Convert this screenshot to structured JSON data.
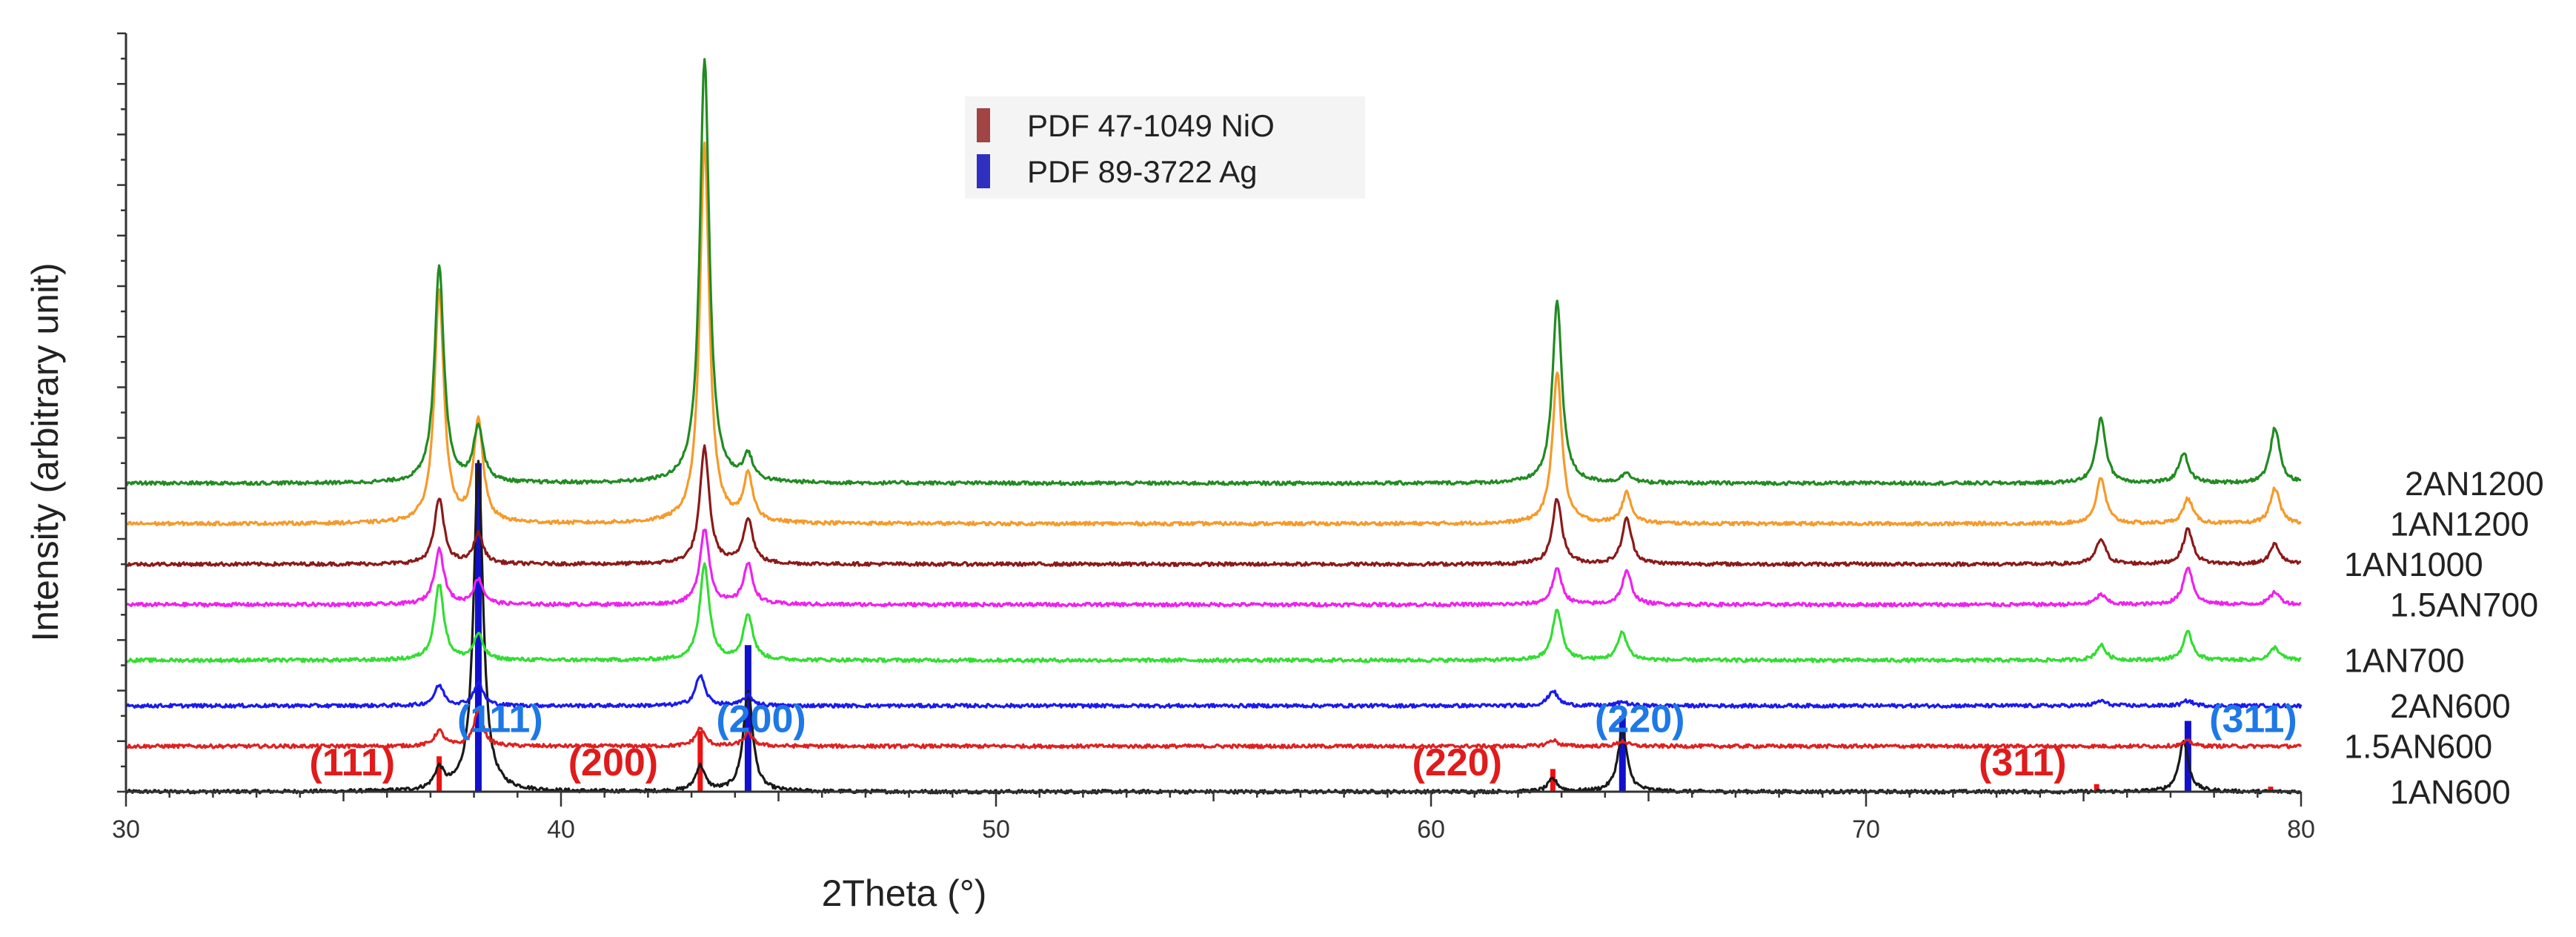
{
  "chart_data": {
    "type": "line",
    "title": "",
    "xlabel": "2Theta (°)",
    "ylabel": "Intensity (arbitrary unit)",
    "xlim": [
      30,
      80
    ],
    "x_ticks": [
      30,
      40,
      50,
      60,
      70,
      80
    ],
    "legend": {
      "placement": "top-center",
      "entries": [
        {
          "label": "PDF 47-1049 NiO",
          "color": "#a04444"
        },
        {
          "label": "PDF 89-3722 Ag",
          "color": "#3030c0"
        }
      ]
    },
    "series": [
      {
        "name": "1AN600",
        "color": "#1a1a1a",
        "baseline": 0,
        "peaks": [
          {
            "x": 37.2,
            "y": 0.4
          },
          {
            "x": 38.1,
            "y": 6.5
          },
          {
            "x": 43.2,
            "y": 0.5
          },
          {
            "x": 44.3,
            "y": 2.0
          },
          {
            "x": 62.8,
            "y": 0.25
          },
          {
            "x": 64.4,
            "y": 1.2
          },
          {
            "x": 77.3,
            "y": 1.0
          }
        ]
      },
      {
        "name": "1.5AN600",
        "color": "#e02020",
        "baseline": 0.9,
        "peaks": [
          {
            "x": 37.2,
            "y": 0.3
          },
          {
            "x": 38.1,
            "y": 0.7
          },
          {
            "x": 43.2,
            "y": 0.35
          },
          {
            "x": 44.3,
            "y": 0.25
          },
          {
            "x": 62.8,
            "y": 0.12
          },
          {
            "x": 64.4,
            "y": 0.1
          },
          {
            "x": 77.4,
            "y": 0.1
          }
        ]
      },
      {
        "name": "2AN600",
        "color": "#1a1aee",
        "baseline": 1.7,
        "peaks": [
          {
            "x": 37.2,
            "y": 0.4
          },
          {
            "x": 38.1,
            "y": 0.45
          },
          {
            "x": 43.2,
            "y": 0.6
          },
          {
            "x": 44.3,
            "y": 0.2
          },
          {
            "x": 62.8,
            "y": 0.3
          },
          {
            "x": 64.4,
            "y": 0.08
          },
          {
            "x": 75.4,
            "y": 0.1
          },
          {
            "x": 77.4,
            "y": 0.1
          }
        ]
      },
      {
        "name": "1AN700",
        "color": "#33dd33",
        "baseline": 2.6,
        "peaks": [
          {
            "x": 37.2,
            "y": 1.5
          },
          {
            "x": 38.1,
            "y": 0.5
          },
          {
            "x": 43.3,
            "y": 1.9
          },
          {
            "x": 44.3,
            "y": 0.9
          },
          {
            "x": 62.9,
            "y": 1.0
          },
          {
            "x": 64.4,
            "y": 0.55
          },
          {
            "x": 75.4,
            "y": 0.3
          },
          {
            "x": 77.4,
            "y": 0.55
          },
          {
            "x": 79.4,
            "y": 0.25
          }
        ]
      },
      {
        "name": "1.5AN700",
        "color": "#ee22ee",
        "baseline": 3.7,
        "peaks": [
          {
            "x": 37.2,
            "y": 1.1
          },
          {
            "x": 38.1,
            "y": 0.5
          },
          {
            "x": 43.3,
            "y": 1.5
          },
          {
            "x": 44.3,
            "y": 0.8
          },
          {
            "x": 62.9,
            "y": 0.7
          },
          {
            "x": 64.5,
            "y": 0.65
          },
          {
            "x": 75.4,
            "y": 0.2
          },
          {
            "x": 77.4,
            "y": 0.75
          },
          {
            "x": 79.4,
            "y": 0.25
          }
        ]
      },
      {
        "name": "1AN1000",
        "color": "#8b1a1a",
        "baseline": 4.5,
        "peaks": [
          {
            "x": 37.2,
            "y": 1.3
          },
          {
            "x": 38.1,
            "y": 0.6
          },
          {
            "x": 43.3,
            "y": 2.3
          },
          {
            "x": 44.3,
            "y": 0.9
          },
          {
            "x": 62.9,
            "y": 1.3
          },
          {
            "x": 64.5,
            "y": 0.9
          },
          {
            "x": 75.4,
            "y": 0.5
          },
          {
            "x": 77.4,
            "y": 0.7
          },
          {
            "x": 79.4,
            "y": 0.4
          }
        ]
      },
      {
        "name": "1AN1200",
        "color": "#f59a2a",
        "baseline": 5.3,
        "peaks": [
          {
            "x": 37.2,
            "y": 4.6
          },
          {
            "x": 38.1,
            "y": 2.0
          },
          {
            "x": 43.3,
            "y": 7.5
          },
          {
            "x": 44.3,
            "y": 0.9
          },
          {
            "x": 62.9,
            "y": 3.0
          },
          {
            "x": 64.5,
            "y": 0.6
          },
          {
            "x": 75.4,
            "y": 0.9
          },
          {
            "x": 77.4,
            "y": 0.5
          },
          {
            "x": 79.4,
            "y": 0.7
          }
        ]
      },
      {
        "name": "2AN1200",
        "color": "#228b22",
        "baseline": 6.1,
        "peaks": [
          {
            "x": 37.2,
            "y": 4.3
          },
          {
            "x": 38.1,
            "y": 1.1
          },
          {
            "x": 43.3,
            "y": 8.4
          },
          {
            "x": 44.3,
            "y": 0.5
          },
          {
            "x": 62.9,
            "y": 3.6
          },
          {
            "x": 64.5,
            "y": 0.2
          },
          {
            "x": 75.4,
            "y": 1.3
          },
          {
            "x": 77.3,
            "y": 0.6
          },
          {
            "x": 79.4,
            "y": 1.1
          }
        ]
      }
    ],
    "reference_lines": [
      {
        "pattern": "PDF 47-1049 NiO",
        "color": "#ee1111",
        "lines": [
          {
            "x": 37.2,
            "h": 0.7
          },
          {
            "x": 43.2,
            "h": 1.2
          },
          {
            "x": 62.8,
            "h": 0.45
          },
          {
            "x": 75.3,
            "h": 0.15
          },
          {
            "x": 79.3,
            "h": 0.1
          }
        ]
      },
      {
        "pattern": "PDF 89-3722 Ag",
        "color": "#1111cc",
        "lines": [
          {
            "x": 38.1,
            "h": 6.5
          },
          {
            "x": 44.3,
            "h": 2.9
          },
          {
            "x": 64.4,
            "h": 1.5
          },
          {
            "x": 77.4,
            "h": 1.4
          }
        ]
      }
    ],
    "annotations": [
      {
        "text": "(111)",
        "x": 38.6,
        "color": "#1e78e6",
        "group": "Ag"
      },
      {
        "text": "(200)",
        "x": 44.6,
        "color": "#1e78e6",
        "group": "Ag"
      },
      {
        "text": "(220)",
        "x": 64.8,
        "color": "#1e78e6",
        "group": "Ag"
      },
      {
        "text": "(311)",
        "x": 78.9,
        "color": "#1e78e6",
        "group": "Ag"
      },
      {
        "text": "(111)",
        "x": 35.2,
        "color": "#e01b1b",
        "group": "NiO"
      },
      {
        "text": "(200)",
        "x": 41.2,
        "color": "#e01b1b",
        "group": "NiO"
      },
      {
        "text": "(220)",
        "x": 60.6,
        "color": "#e01b1b",
        "group": "NiO"
      },
      {
        "text": "(311)",
        "x": 73.6,
        "color": "#e01b1b",
        "group": "NiO"
      }
    ]
  }
}
